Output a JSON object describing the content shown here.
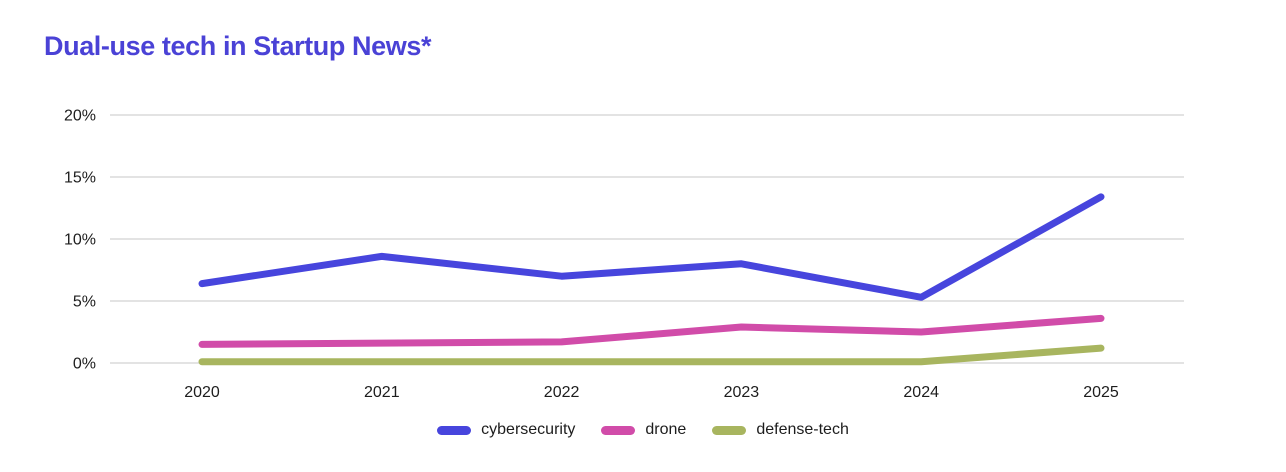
{
  "page": {
    "background": "#ffffff"
  },
  "title_color": "#4a42d6",
  "chart_data": {
    "type": "line",
    "title": "Dual-use tech in Startup News*",
    "categories": [
      "2020",
      "2021",
      "2022",
      "2023",
      "2024",
      "2025"
    ],
    "series": [
      {
        "name": "cybersecurity",
        "color": "#4745dd",
        "values": [
          6.4,
          8.6,
          7.0,
          8.0,
          5.3,
          13.4
        ]
      },
      {
        "name": "drone",
        "color": "#d14ca9",
        "values": [
          1.5,
          1.6,
          1.7,
          2.9,
          2.5,
          3.6
        ]
      },
      {
        "name": "defense-tech",
        "color": "#a8b55f",
        "values": [
          0.1,
          0.1,
          0.1,
          0.1,
          0.1,
          1.2
        ]
      }
    ],
    "xlabel": "",
    "ylabel": "",
    "ylim": [
      0,
      20
    ],
    "yticks": [
      {
        "value": 0,
        "label": "0%"
      },
      {
        "value": 5,
        "label": "5%"
      },
      {
        "value": 10,
        "label": "10%"
      },
      {
        "value": 15,
        "label": "15%"
      },
      {
        "value": 20,
        "label": "20%"
      }
    ],
    "grid": "horizontal",
    "gridline_color": "#dadada",
    "axis_text_color": "#1d1d1d",
    "legend_position": "bottom"
  }
}
